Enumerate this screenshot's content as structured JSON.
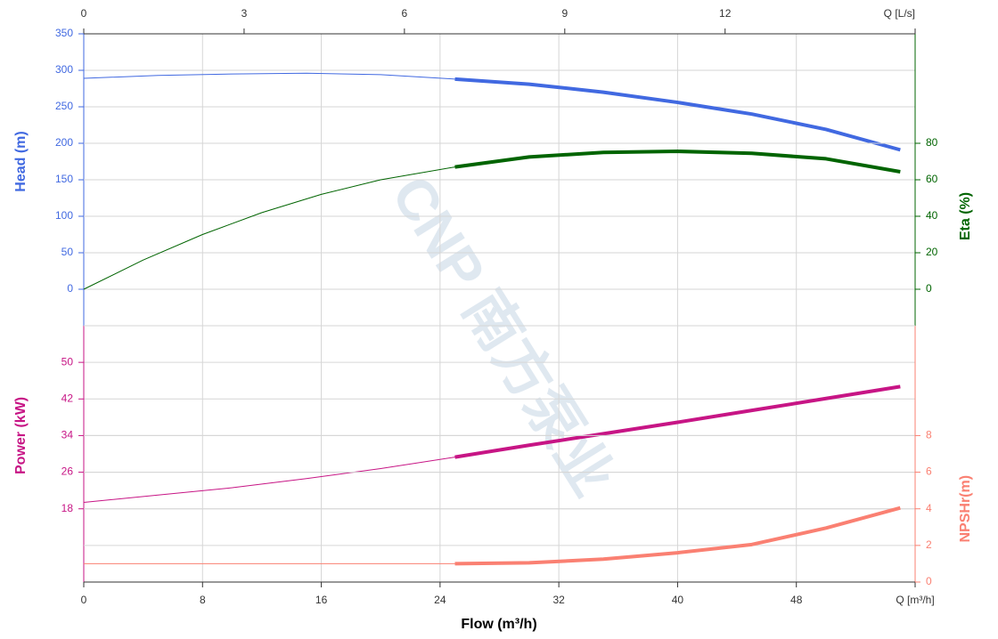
{
  "watermark": "CNP 南方泵业",
  "chart_data": {
    "type": "line",
    "xlabel": "Flow (m³/h)",
    "xlim": [
      0,
      56
    ],
    "xticks": [
      0,
      8,
      16,
      24,
      32,
      40,
      48,
      {
        "value": 56,
        "label": "Q [m³/h]"
      }
    ],
    "x2lim": [
      0,
      15.5556
    ],
    "x2ticks": [
      0,
      3,
      6,
      9,
      12,
      {
        "value": 15.5556,
        "label": "Q [L/s]"
      }
    ],
    "grid": true,
    "series": [
      {
        "name": "Head (m)",
        "color": "#4169e1",
        "panel": "upper",
        "side": "left",
        "ylim": [
          -50,
          350
        ],
        "yticks": [
          0,
          50,
          100,
          150,
          200,
          250,
          300,
          350
        ],
        "segments": [
          {
            "width": 1,
            "x": [
              0,
              5,
              10,
              15,
              20,
              25
            ],
            "values": [
              289,
              293,
              295,
              296,
              294,
              288
            ]
          },
          {
            "width": 4,
            "x": [
              25,
              30,
              35,
              40,
              45,
              50,
              55
            ],
            "values": [
              288,
              281,
              270,
              256,
              240,
              219,
              191
            ]
          }
        ]
      },
      {
        "name": "Eta (%)",
        "color": "#006400",
        "panel": "upper",
        "side": "right",
        "ylim": [
          -20,
          140
        ],
        "yticks": [
          0,
          20,
          40,
          60,
          80
        ],
        "segments": [
          {
            "width": 1,
            "x": [
              0,
              4,
              8,
              12,
              16,
              20,
              25
            ],
            "values": [
              0,
              16,
              30,
              42,
              52,
              60,
              67
            ]
          },
          {
            "width": 4,
            "x": [
              25,
              30,
              35,
              40,
              45,
              50,
              55
            ],
            "values": [
              67,
              72.5,
              75,
              75.6,
              74.5,
              71.5,
              64.4
            ]
          }
        ]
      },
      {
        "name": "Power (kW)",
        "color": "#c71585",
        "panel": "lower",
        "side": "left",
        "ylim": [
          2,
          58
        ],
        "yticks": [
          18,
          26,
          34,
          42,
          50
        ],
        "segments": [
          {
            "width": 1,
            "x": [
              0,
              5,
              10,
              15,
              20,
              25
            ],
            "values": [
              19.4,
              21,
              22.6,
              24.6,
              26.8,
              29.3
            ]
          },
          {
            "width": 4,
            "x": [
              25,
              30,
              35,
              40,
              45,
              50,
              55
            ],
            "values": [
              29.3,
              31.9,
              34.4,
              36.9,
              39.5,
              42.1,
              44.7
            ]
          }
        ]
      },
      {
        "name": "NPSHr(m)",
        "color": "#fa8072",
        "panel": "lower",
        "side": "right",
        "ylim": [
          0,
          14
        ],
        "yticks": [
          0,
          2,
          4,
          6,
          8
        ],
        "segments": [
          {
            "width": 1,
            "x": [
              0,
              5,
              10,
              15,
              20,
              25
            ],
            "values": [
              1,
              1,
              1,
              1,
              1,
              1
            ]
          },
          {
            "width": 4,
            "x": [
              25,
              30,
              35,
              40,
              45,
              50,
              55
            ],
            "values": [
              1,
              1.05,
              1.25,
              1.6,
              2.05,
              2.95,
              4.05
            ]
          }
        ]
      }
    ]
  }
}
